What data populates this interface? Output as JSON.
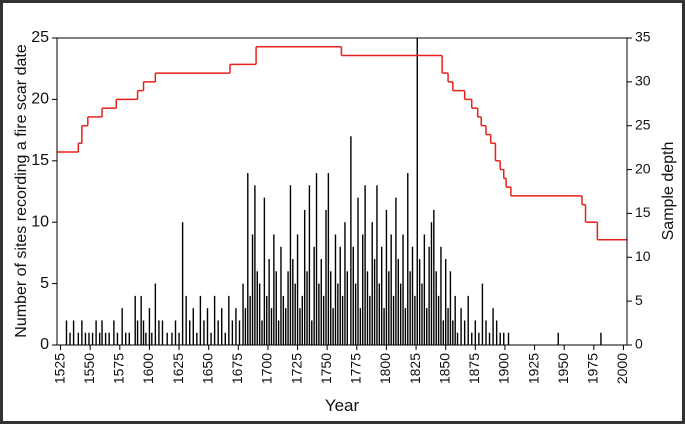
{
  "chart_data": {
    "type": "bar",
    "xlabel": "Year",
    "ylabel": "Number of sites recording a fire scar date",
    "y2label": "Sample depth",
    "xlim": [
      1522,
      2003
    ],
    "xticks": [
      1525,
      1550,
      1575,
      1600,
      1625,
      1650,
      1675,
      1700,
      1725,
      1750,
      1775,
      1800,
      1825,
      1850,
      1875,
      1900,
      1925,
      1950,
      1975,
      2000
    ],
    "ylim": [
      0,
      25
    ],
    "yticks": [
      0,
      5,
      10,
      15,
      20,
      25
    ],
    "y2lim": [
      0,
      35
    ],
    "y2ticks": [
      0,
      5,
      10,
      15,
      20,
      25,
      30,
      35
    ],
    "series": [
      {
        "type": "bar",
        "axis": "y",
        "color": "#000000",
        "x": [
          1530,
          1533,
          1536,
          1540,
          1543,
          1546,
          1549,
          1552,
          1555,
          1558,
          1560,
          1563,
          1566,
          1570,
          1573,
          1577,
          1580,
          1583,
          1588,
          1590,
          1593,
          1595,
          1597,
          1600,
          1602,
          1605,
          1608,
          1611,
          1615,
          1619,
          1622,
          1625,
          1628,
          1631,
          1634,
          1637,
          1640,
          1643,
          1646,
          1649,
          1652,
          1655,
          1658,
          1661,
          1664,
          1667,
          1670,
          1673,
          1676,
          1679,
          1681,
          1683,
          1685,
          1687,
          1689,
          1691,
          1693,
          1695,
          1697,
          1699,
          1701,
          1703,
          1705,
          1707,
          1709,
          1711,
          1713,
          1715,
          1717,
          1719,
          1721,
          1723,
          1725,
          1727,
          1729,
          1731,
          1733,
          1735,
          1737,
          1739,
          1741,
          1743,
          1745,
          1747,
          1749,
          1751,
          1753,
          1755,
          1757,
          1759,
          1761,
          1763,
          1765,
          1767,
          1770,
          1772,
          1774,
          1776,
          1778,
          1780,
          1782,
          1784,
          1786,
          1788,
          1790,
          1792,
          1794,
          1796,
          1798,
          1800,
          1802,
          1804,
          1806,
          1808,
          1810,
          1812,
          1814,
          1816,
          1818,
          1820,
          1822,
          1824,
          1826,
          1828,
          1830,
          1832,
          1834,
          1836,
          1838,
          1840,
          1842,
          1844,
          1846,
          1848,
          1850,
          1852,
          1854,
          1856,
          1858,
          1860,
          1863,
          1866,
          1869,
          1872,
          1875,
          1878,
          1881,
          1884,
          1887,
          1890,
          1893,
          1896,
          1899,
          1903,
          1945,
          1981
        ],
        "values": [
          2,
          1,
          2,
          1,
          2,
          1,
          1,
          1,
          2,
          1,
          2,
          1,
          1,
          2,
          1,
          3,
          1,
          1,
          4,
          2,
          4,
          2,
          1,
          3,
          1,
          5,
          2,
          2,
          1,
          1,
          2,
          1,
          10,
          4,
          2,
          3,
          1,
          4,
          2,
          3,
          1,
          4,
          2,
          3,
          1,
          4,
          2,
          3,
          2,
          5,
          3,
          14,
          4,
          9,
          13,
          6,
          5,
          2,
          12,
          4,
          7,
          3,
          9,
          6,
          2,
          8,
          4,
          3,
          6,
          13,
          7,
          5,
          9,
          3,
          4,
          11,
          6,
          13,
          2,
          8,
          14,
          5,
          7,
          4,
          11,
          14,
          6,
          3,
          9,
          5,
          8,
          4,
          10,
          6,
          17,
          8,
          5,
          12,
          3,
          9,
          13,
          6,
          4,
          10,
          7,
          13,
          5,
          8,
          3,
          11,
          6,
          9,
          4,
          12,
          7,
          5,
          9,
          3,
          14,
          6,
          8,
          4,
          25,
          7,
          5,
          9,
          3,
          8,
          10,
          11,
          6,
          4,
          8,
          2,
          7,
          3,
          6,
          2,
          4,
          1,
          3,
          2,
          4,
          1,
          2,
          1,
          5,
          2,
          1,
          3,
          2,
          1,
          1,
          1,
          1,
          1
        ]
      },
      {
        "type": "step",
        "axis": "y2",
        "color": "#e8201c",
        "x": [
          1522,
          1540,
          1543,
          1548,
          1560,
          1572,
          1590,
          1595,
          1605,
          1668,
          1690,
          1762,
          1845,
          1847,
          1852,
          1856,
          1866,
          1872,
          1877,
          1880,
          1884,
          1888,
          1892,
          1896,
          1899,
          1901,
          1905,
          1965,
          1968,
          1978
        ],
        "values": [
          22,
          23,
          25,
          26,
          27,
          28,
          29,
          30,
          31,
          32,
          34,
          33,
          33,
          31,
          30,
          29,
          28,
          27,
          26,
          25,
          24,
          23,
          21,
          20,
          19,
          18,
          17,
          16,
          14,
          12
        ]
      }
    ]
  }
}
